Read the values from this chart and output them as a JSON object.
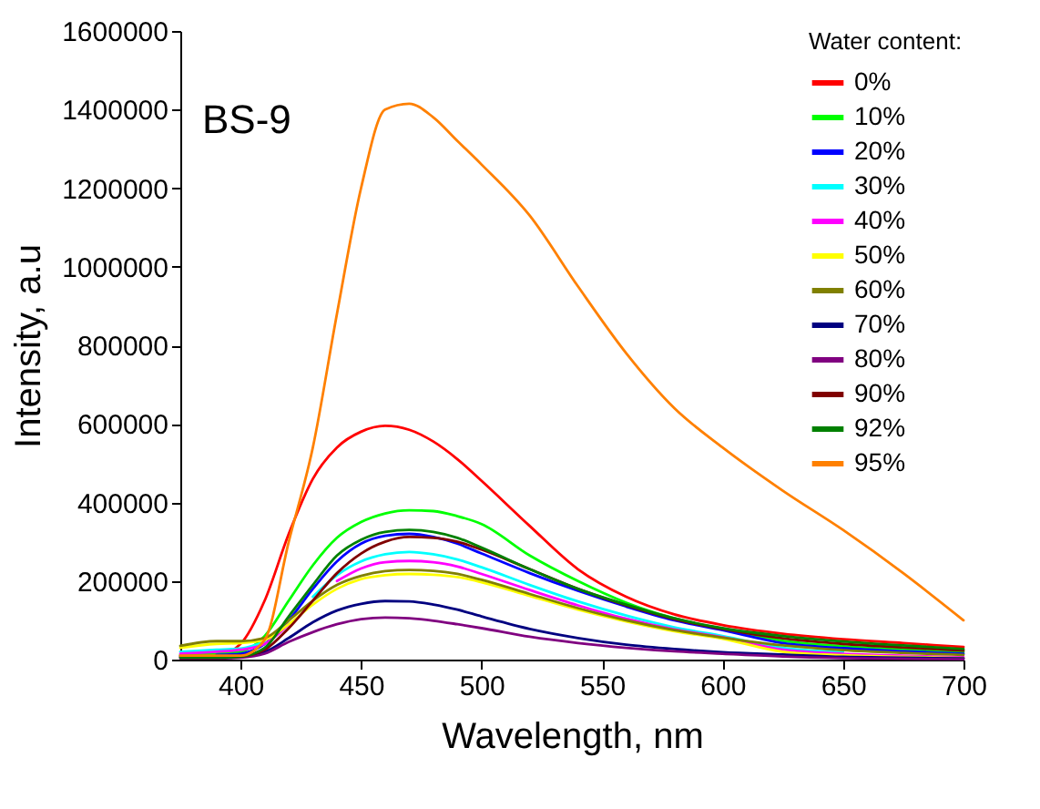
{
  "chart_data": {
    "type": "line",
    "title": "BS-9",
    "xlabel": "Wavelength, nm",
    "ylabel": "Intensity, a.u",
    "legend_title": "Water content:",
    "x": [
      375,
      390,
      400,
      410,
      420,
      430,
      440,
      450,
      460,
      470,
      480,
      490,
      500,
      520,
      540,
      560,
      580,
      600,
      625,
      650,
      675,
      700
    ],
    "series": [
      {
        "name": "0%",
        "color": "#ff0000",
        "values": [
          10000,
          10000,
          40000,
          150000,
          320000,
          460000,
          540000,
          580000,
          595000,
          585000,
          555000,
          510000,
          455000,
          340000,
          230000,
          160000,
          115000,
          88000,
          66000,
          52000,
          42000,
          32000
        ]
      },
      {
        "name": "10%",
        "color": "#00ff00",
        "values": [
          12000,
          15000,
          20000,
          60000,
          150000,
          240000,
          310000,
          350000,
          372000,
          380000,
          378000,
          365000,
          345000,
          265000,
          200000,
          145000,
          105000,
          78000,
          48000,
          34000,
          26000,
          19000
        ]
      },
      {
        "name": "20%",
        "color": "#0000ff",
        "values": [
          null,
          12000,
          15000,
          40000,
          100000,
          180000,
          250000,
          295000,
          315000,
          320000,
          312000,
          295000,
          270000,
          220000,
          175000,
          135000,
          100000,
          75000,
          42000,
          29000,
          21000,
          15000
        ]
      },
      {
        "name": "30%",
        "color": "#00ffff",
        "values": [
          20000,
          25000,
          28000,
          45000,
          null,
          160000,
          215000,
          250000,
          268000,
          274000,
          268000,
          255000,
          235000,
          190000,
          148000,
          112000,
          82000,
          60000,
          30000,
          19000,
          null,
          null
        ]
      },
      {
        "name": "40%",
        "color": "#ff00ff",
        "values": [
          15000,
          20000,
          25000,
          40000,
          90000,
          null,
          200000,
          232000,
          248000,
          251000,
          248000,
          237000,
          218000,
          177000,
          138000,
          104000,
          77000,
          57000,
          25000,
          15000,
          10000,
          6000
        ]
      },
      {
        "name": "50%",
        "color": "#ffff00",
        "values": [
          30000,
          40000,
          42000,
          50000,
          90000,
          140000,
          180000,
          205000,
          215000,
          218000,
          216000,
          210000,
          197000,
          162000,
          127000,
          97000,
          72000,
          53000,
          20000,
          11000,
          7000,
          4000
        ]
      },
      {
        "name": "60%",
        "color": "#808000",
        "values": [
          35000,
          47000,
          47000,
          55000,
          100000,
          150000,
          190000,
          213000,
          225000,
          228000,
          226000,
          218000,
          203000,
          167000,
          131000,
          100000,
          75000,
          56000,
          36000,
          24000,
          17000,
          12000
        ]
      },
      {
        "name": "70%",
        "color": "#000080",
        "values": [
          8000,
          8000,
          10000,
          20000,
          55000,
          95000,
          125000,
          142000,
          149000,
          148000,
          140000,
          127000,
          110000,
          78000,
          55000,
          38000,
          27000,
          19000,
          13000,
          7000,
          5000,
          3000
        ]
      },
      {
        "name": "80%",
        "color": "#800080",
        "values": [
          3000,
          3000,
          5000,
          15000,
          45000,
          70000,
          90000,
          103000,
          107000,
          105000,
          99000,
          90000,
          80000,
          58000,
          42000,
          30000,
          21000,
          15000,
          8000,
          4000,
          2000,
          1000
        ]
      },
      {
        "name": "90%",
        "color": "#800000",
        "values": [
          5000,
          5000,
          8000,
          25000,
          80000,
          150000,
          220000,
          270000,
          300000,
          312000,
          310000,
          300000,
          280000,
          230000,
          180000,
          138000,
          103000,
          78000,
          54000,
          40000,
          31000,
          23000
        ]
      },
      {
        "name": "92%",
        "color": "#008000",
        "values": [
          5000,
          5000,
          8000,
          30000,
          110000,
          190000,
          265000,
          305000,
          325000,
          330000,
          325000,
          310000,
          285000,
          230000,
          180000,
          140000,
          105000,
          80000,
          60000,
          46000,
          36000,
          27000
        ]
      },
      {
        "name": "95%",
        "color": "#ff8000",
        "values": [
          10000,
          10000,
          10000,
          50000,
          300000,
          540000,
          880000,
          1200000,
          1400000,
          1415000,
          1380000,
          1320000,
          1260000,
          1130000,
          950000,
          780000,
          640000,
          540000,
          430000,
          330000,
          220000,
          100000
        ]
      }
    ],
    "xlim": [
      375,
      700
    ],
    "xticks": [
      400,
      450,
      500,
      550,
      600,
      650,
      700
    ],
    "ylim": [
      0,
      1600000
    ],
    "yticks": [
      0,
      200000,
      400000,
      600000,
      800000,
      1000000,
      1200000,
      1400000,
      1600000
    ],
    "legend": "top right",
    "grid": false,
    "marker": "none",
    "line_style": "solid"
  }
}
